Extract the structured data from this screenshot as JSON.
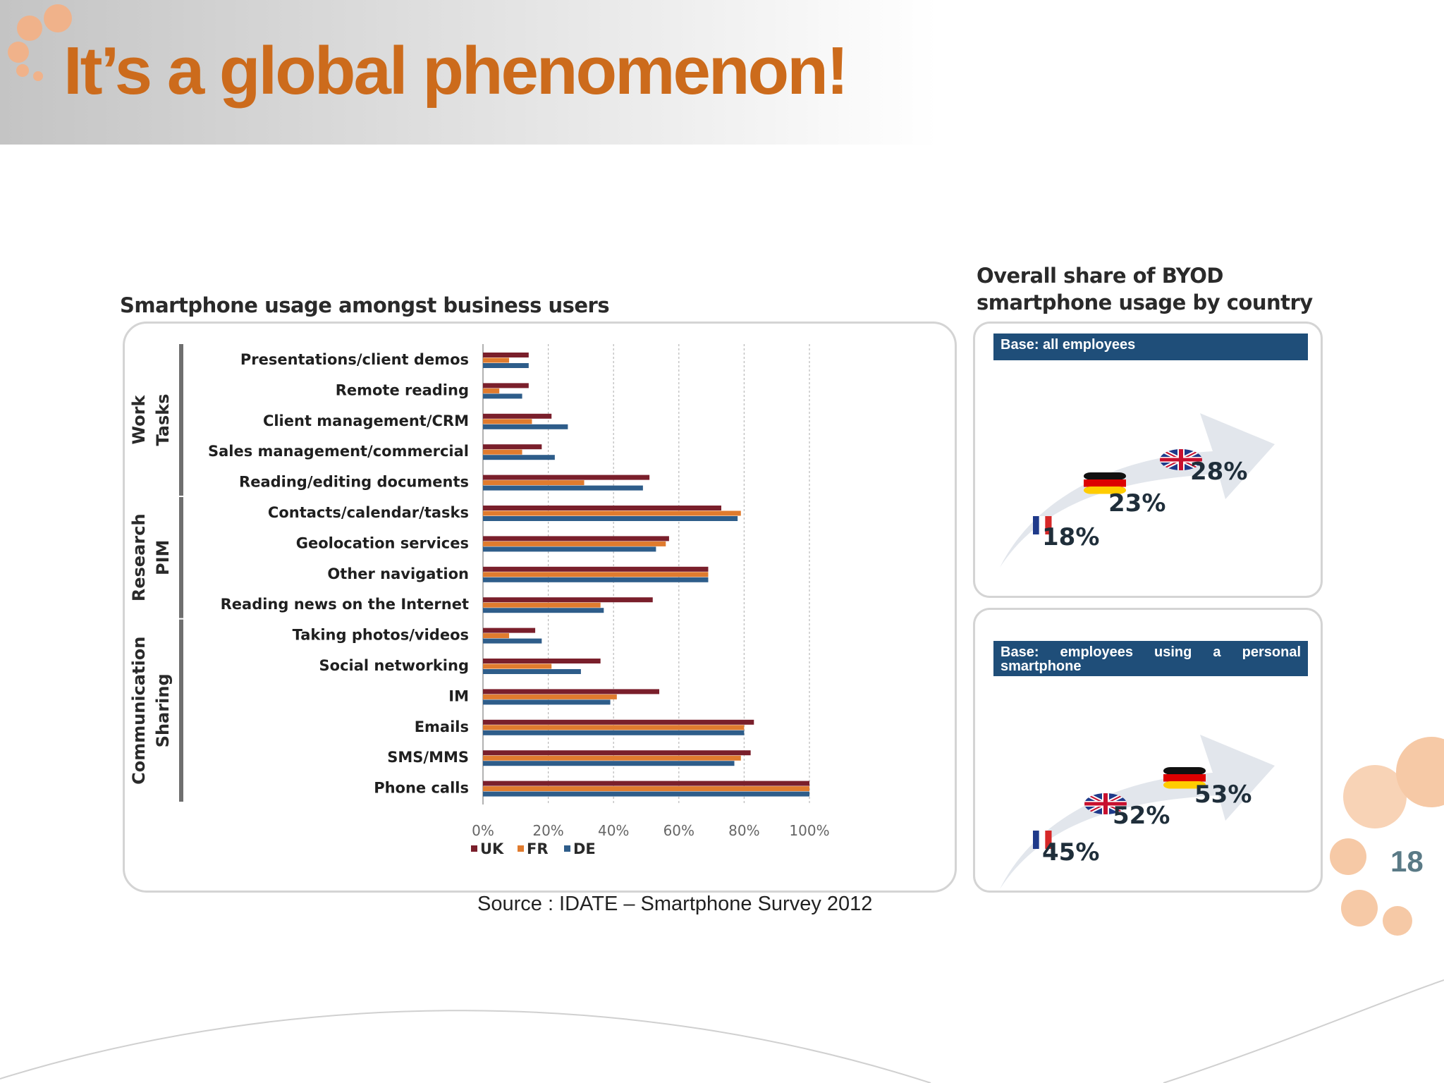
{
  "slide": {
    "title": "It’s a global phenomenon!",
    "page_number": "18",
    "source": "Source : IDATE – Smartphone Survey 2012",
    "accent_color": "#cc6b1c"
  },
  "chart_data": [
    {
      "type": "bar",
      "orientation": "horizontal",
      "title": "Smartphone usage amongst business users",
      "categories": [
        "Presentations/client demos",
        "Remote reading",
        "Client management/CRM",
        "Sales management/commercial",
        "Reading/editing documents",
        "Contacts/calendar/tasks",
        "Geolocation services",
        "Other navigation",
        "Reading news on the Internet",
        "Taking photos/videos",
        "Social networking",
        "IM",
        "Emails",
        "SMS/MMS",
        "Phone calls"
      ],
      "groups": [
        {
          "label": "Work Tasks",
          "from": 0,
          "to": 4
        },
        {
          "label": "Research PIM",
          "from": 5,
          "to": 8
        },
        {
          "label": "Communication Sharing",
          "from": 9,
          "to": 14
        }
      ],
      "series": [
        {
          "name": "UK",
          "color": "#7a1f2b",
          "values": [
            14,
            14,
            21,
            18,
            51,
            73,
            57,
            69,
            52,
            16,
            36,
            54,
            83,
            82,
            100
          ]
        },
        {
          "name": "FR",
          "color": "#e07b2e",
          "values": [
            8,
            5,
            15,
            12,
            31,
            79,
            56,
            69,
            36,
            8,
            21,
            41,
            80,
            79,
            100
          ]
        },
        {
          "name": "DE",
          "color": "#2e5d8a",
          "values": [
            14,
            12,
            26,
            22,
            49,
            78,
            53,
            69,
            37,
            18,
            30,
            39,
            80,
            77,
            100
          ]
        }
      ],
      "xlim": [
        0,
        100
      ],
      "x_ticks": [
        "0%",
        "20%",
        "40%",
        "60%",
        "80%",
        "100%"
      ],
      "grid": "vertical dashed",
      "legend": "bottom-left"
    },
    {
      "type": "bar",
      "title": "Overall share of BYOD smartphone usage by country",
      "subtitle": "Base: all employees",
      "categories": [
        "FR",
        "DE",
        "UK"
      ],
      "values": [
        18,
        23,
        28
      ],
      "value_labels": [
        "18%",
        "23%",
        "28%"
      ]
    },
    {
      "type": "bar",
      "subtitle": "Base: employees using a personal smartphone",
      "categories": [
        "FR",
        "UK",
        "DE"
      ],
      "values": [
        45,
        52,
        53
      ],
      "value_labels": [
        "45%",
        "52%",
        "53%"
      ]
    }
  ]
}
